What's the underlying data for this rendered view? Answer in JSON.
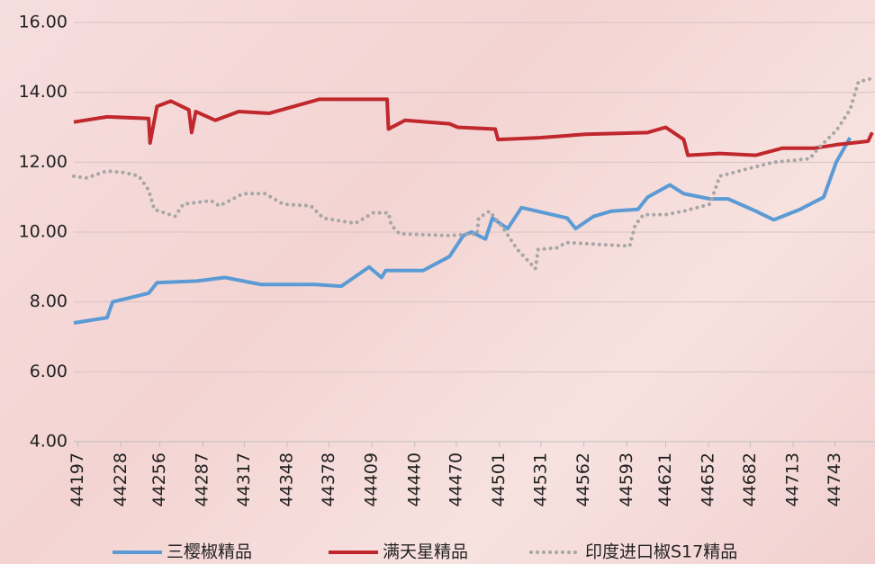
{
  "chart_data": {
    "type": "line",
    "xlim": [
      44194,
      44772
    ],
    "ylim": [
      4,
      16
    ],
    "xticks": [
      44197,
      44228,
      44256,
      44287,
      44317,
      44348,
      44378,
      44409,
      44440,
      44470,
      44501,
      44531,
      44562,
      44593,
      44621,
      44652,
      44682,
      44713,
      44743
    ],
    "yticks": [
      {
        "value": 4,
        "label": "4.00"
      },
      {
        "value": 6,
        "label": "6.00"
      },
      {
        "value": 8,
        "label": "8.00"
      },
      {
        "value": 10,
        "label": "10.00"
      },
      {
        "value": 12,
        "label": "12.00"
      },
      {
        "value": 14,
        "label": "14.00"
      },
      {
        "value": 16,
        "label": "16.00"
      }
    ],
    "grid": true,
    "legend": "bottom",
    "series": [
      {
        "name": "三樱椒精品",
        "color": "#5b9bd5",
        "style": "solid",
        "x": [
          44194,
          44218,
          44222,
          44248,
          44254,
          44283,
          44303,
          44329,
          44368,
          44387,
          44407,
          44416,
          44419,
          44446,
          44465,
          44475,
          44481,
          44491,
          44496,
          44507,
          44517,
          44550,
          44556,
          44569,
          44582,
          44601,
          44608,
          44624,
          44634,
          44653,
          44666,
          44686,
          44699,
          44718,
          44735,
          44744,
          44754
        ],
        "values": [
          7.4,
          7.55,
          8.0,
          8.25,
          8.55,
          8.6,
          8.7,
          8.5,
          8.5,
          8.45,
          9.0,
          8.7,
          8.9,
          8.9,
          9.3,
          9.9,
          10.0,
          9.8,
          10.4,
          10.1,
          10.7,
          10.4,
          10.1,
          10.45,
          10.6,
          10.65,
          11.0,
          11.35,
          11.1,
          10.95,
          10.95,
          10.6,
          10.35,
          10.65,
          11.0,
          12.0,
          12.7
        ]
      },
      {
        "name": "满天星精品",
        "color": "#c0282d",
        "style": "solid",
        "x": [
          44194,
          44218,
          44248,
          44249,
          44254,
          44264,
          44277,
          44279,
          44282,
          44296,
          44313,
          44335,
          44371,
          44420,
          44421,
          44433,
          44465,
          44471,
          44498,
          44500,
          44530,
          44563,
          44608,
          44621,
          44634,
          44637,
          44660,
          44686,
          44705,
          44728,
          44744,
          44767,
          44770
        ],
        "values": [
          13.15,
          13.3,
          13.25,
          12.55,
          13.6,
          13.75,
          13.5,
          12.85,
          13.45,
          13.2,
          13.45,
          13.4,
          13.8,
          13.8,
          12.95,
          13.2,
          13.1,
          13.0,
          12.95,
          12.65,
          12.7,
          12.8,
          12.85,
          13.0,
          12.65,
          12.2,
          12.25,
          12.2,
          12.4,
          12.4,
          12.5,
          12.6,
          12.85
        ]
      },
      {
        "name": "印度进口椒S17精品",
        "color": "#a6a6a6",
        "style": "dotted",
        "x": [
          44194,
          44203,
          44218,
          44231,
          44241,
          44248,
          44252,
          44267,
          44273,
          44293,
          44299,
          44316,
          44332,
          44345,
          44365,
          44374,
          44397,
          44410,
          44421,
          44423,
          44429,
          44465,
          44485,
          44486,
          44494,
          44504,
          44514,
          44527,
          44529,
          44543,
          44549,
          44595,
          44599,
          44605,
          44621,
          44634,
          44653,
          44660,
          44679,
          44699,
          44725,
          44731,
          44744,
          44754,
          44760,
          44770
        ],
        "values": [
          11.6,
          11.55,
          11.75,
          11.7,
          11.6,
          11.2,
          10.65,
          10.45,
          10.8,
          10.9,
          10.75,
          11.1,
          11.1,
          10.8,
          10.75,
          10.4,
          10.25,
          10.55,
          10.55,
          10.2,
          9.95,
          9.9,
          9.95,
          10.4,
          10.6,
          10.1,
          9.5,
          8.95,
          9.5,
          9.55,
          9.7,
          9.6,
          10.2,
          10.5,
          10.5,
          10.6,
          10.8,
          11.6,
          11.8,
          12.0,
          12.1,
          12.4,
          12.9,
          13.5,
          14.3,
          14.4
        ]
      }
    ]
  }
}
